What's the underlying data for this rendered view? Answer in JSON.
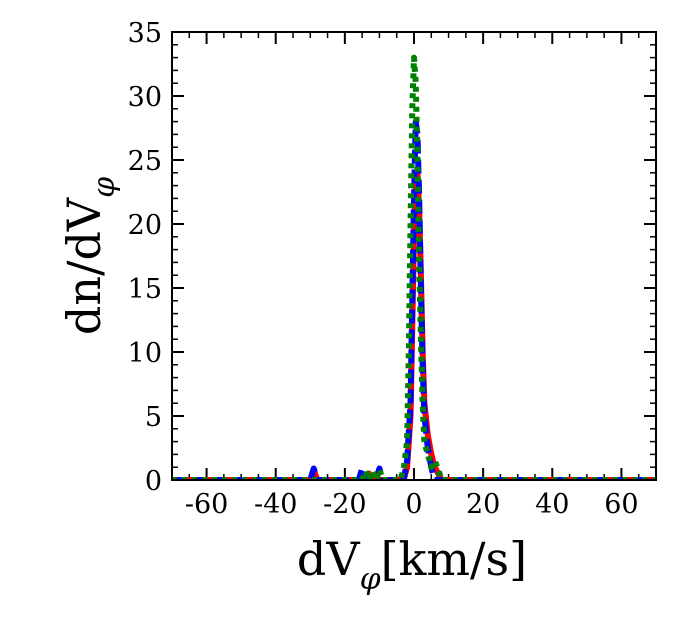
{
  "chart_data": {
    "type": "line",
    "title": "",
    "xlabel": "dV",
    "xlabel_sub": "φ",
    "xlabel_unit": "[km/s]",
    "ylabel": "dn/dV",
    "ylabel_sub": "φ",
    "xlim": [
      -70,
      70
    ],
    "ylim": [
      0,
      35
    ],
    "xticks": [
      -60,
      -40,
      -20,
      0,
      20,
      40,
      60
    ],
    "yticks": [
      0,
      5,
      10,
      15,
      20,
      25,
      30,
      35
    ],
    "xtick_labels": [
      "-60",
      "-40",
      "-20",
      "0",
      "20",
      "40",
      "60"
    ],
    "ytick_labels": [
      "0",
      "5",
      "10",
      "15",
      "20",
      "25",
      "30",
      "35"
    ],
    "legend": "none",
    "grid": false,
    "series": [
      {
        "name": "red-solid",
        "color": "#ff0000",
        "style": "solid",
        "x": [
          -70,
          -30,
          -29,
          -28,
          -27,
          -14,
          -13,
          -12,
          -3,
          -2,
          -1,
          -0.5,
          0,
          0.5,
          1,
          1.5,
          2,
          2.5,
          3,
          4,
          5,
          6,
          7,
          8,
          9,
          70
        ],
        "y": [
          0,
          0,
          0.8,
          0,
          0,
          0,
          0.5,
          0,
          0,
          1.0,
          5.0,
          12.0,
          19.0,
          23.0,
          24.0,
          21.0,
          16.0,
          10.0,
          6.0,
          3.5,
          2.0,
          1.0,
          0.5,
          0,
          0,
          0
        ]
      },
      {
        "name": "blue-dashed",
        "color": "#0000ff",
        "style": "dashed",
        "x": [
          -70,
          -30,
          -29,
          -28,
          -16,
          -15,
          -14,
          -11,
          -10,
          -9,
          -3,
          -2,
          -1,
          -0.5,
          0,
          0.5,
          1,
          1.5,
          2,
          2.5,
          3,
          4,
          5,
          6,
          70
        ],
        "y": [
          0,
          0,
          0.9,
          0,
          0,
          0.9,
          0,
          0,
          0.9,
          0,
          0,
          1.5,
          6.0,
          14.0,
          22.0,
          28.0,
          27.0,
          22.0,
          15.0,
          9.0,
          5.0,
          2.5,
          1.0,
          0,
          0
        ]
      },
      {
        "name": "green-dotted",
        "color": "#008000",
        "style": "dotted",
        "x": [
          -70,
          -15,
          -14,
          -13,
          -12,
          -11,
          -10,
          -9,
          -4,
          -3,
          -2,
          -1.5,
          -1,
          -0.5,
          0,
          0.5,
          1,
          1.5,
          2,
          2.5,
          3,
          4,
          5,
          6,
          7,
          8,
          9,
          70
        ],
        "y": [
          0,
          0,
          0.7,
          0,
          0.7,
          0,
          0.8,
          0,
          0,
          0.8,
          3.0,
          10.0,
          20.0,
          29.0,
          33.0,
          31.0,
          25.0,
          17.0,
          11.0,
          6.0,
          3.0,
          2.0,
          1.0,
          1.5,
          0.8,
          0,
          0,
          0
        ]
      }
    ]
  }
}
